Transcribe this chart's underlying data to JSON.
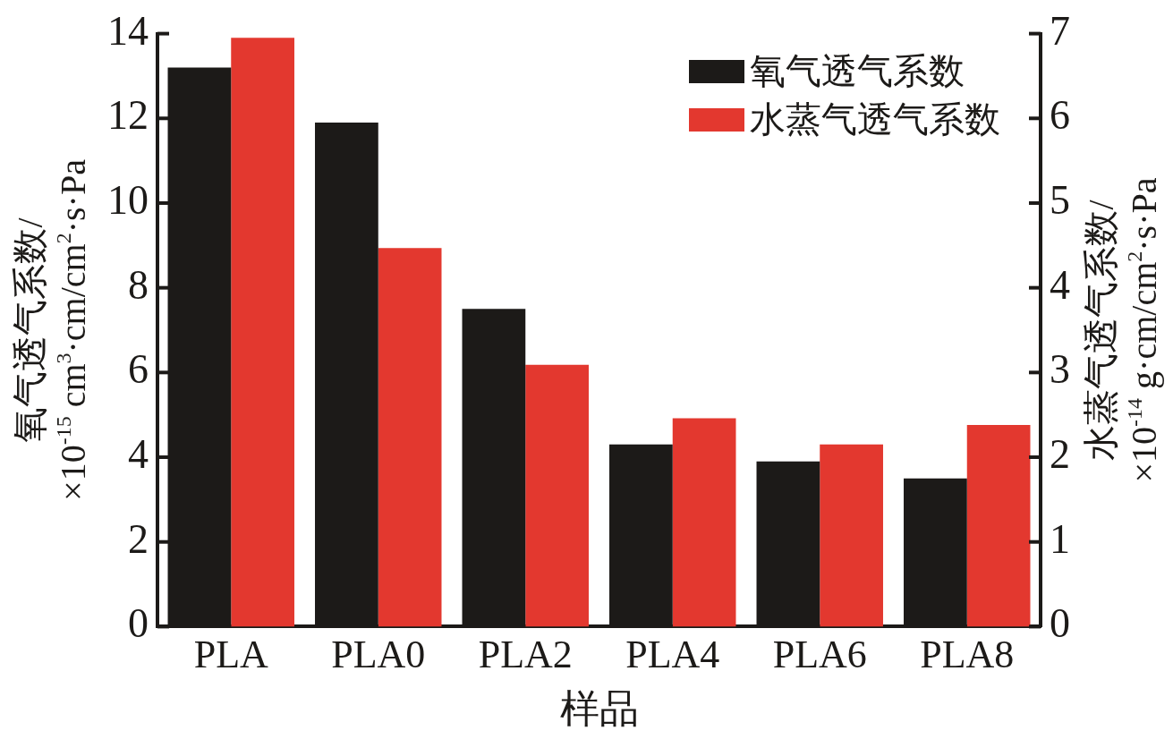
{
  "chart_data": {
    "type": "bar",
    "xlabel": "样品",
    "ylabel": "氧气透气系数/\n×10$^{-15}$ cm$^{3}$·cm/cm$^{2}$·s·Pa",
    "y2label": "水蒸气透气系数/\n×10$^{-14}$ g·cm/cm$^{2}$·s·Pa",
    "categories": [
      "PLA",
      "PLA0",
      "PLA2",
      "PLA4",
      "PLA6",
      "PLA8"
    ],
    "series": [
      {
        "name": "氧气透气系数",
        "color": "#1c1a18",
        "values": [
          13.2,
          11.9,
          7.5,
          4.3,
          3.9,
          3.5
        ]
      },
      {
        "name": "水蒸气透气系数",
        "color": "#e3382f",
        "axis": "y2",
        "values": [
          6.95,
          4.47,
          3.09,
          2.46,
          2.15,
          2.38
        ]
      }
    ],
    "ylim": [
      0,
      14
    ],
    "yticks": [
      0,
      2,
      4,
      6,
      8,
      10,
      12,
      14
    ],
    "y2lim": [
      0,
      7
    ],
    "y2ticks": [
      0,
      1,
      2,
      3,
      4,
      5,
      6,
      7
    ],
    "grid": false,
    "legend": "top right"
  }
}
